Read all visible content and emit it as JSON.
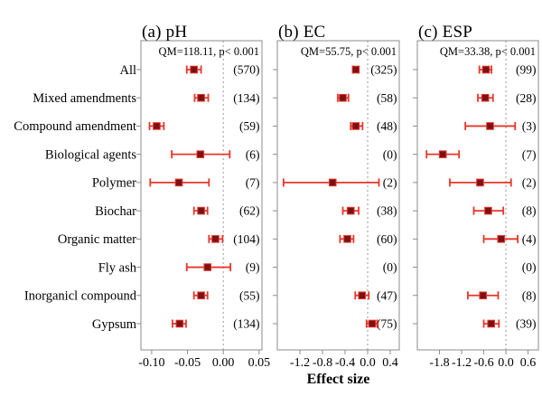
{
  "figure_colors": {
    "error_bar": "#e8362a",
    "marker_fill": "#7b1114",
    "frame": "#8c8c8c",
    "zero_line": "#999999",
    "text": "#000000"
  },
  "chart_data": {
    "type": "scatter",
    "subtype": "forest-plot-with-error-bars",
    "categories": [
      "All",
      "Mixed amendments",
      "Compound amendment",
      "Biological agents",
      "Polymer",
      "Biochar",
      "Organic matter",
      "Fly ash",
      "Inorganicl compound",
      "Gypsum"
    ],
    "xlabel": "Effect size",
    "legend": "none",
    "grid": false,
    "zero_reference_line": 0,
    "panels": [
      {
        "id": "a",
        "title": "(a) pH",
        "stats": "QM=118.11, p< 0.001",
        "xlim": [
          -0.115,
          0.054
        ],
        "xtick_labels": [
          "-0.10",
          "-0.05",
          "0.00",
          "0.05"
        ],
        "xtick_values": [
          -0.1,
          -0.05,
          0.0,
          0.05
        ],
        "points": [
          {
            "value": -0.041,
            "lo": -0.051,
            "hi": -0.031,
            "n": 570
          },
          {
            "value": -0.031,
            "lo": -0.04,
            "hi": -0.021,
            "n": 134
          },
          {
            "value": -0.093,
            "lo": -0.103,
            "hi": -0.083,
            "n": 59
          },
          {
            "value": -0.032,
            "lo": -0.072,
            "hi": 0.009,
            "n": 6
          },
          {
            "value": -0.062,
            "lo": -0.102,
            "hi": -0.02,
            "n": 7
          },
          {
            "value": -0.031,
            "lo": -0.041,
            "hi": -0.022,
            "n": 62
          },
          {
            "value": -0.011,
            "lo": -0.02,
            "hi": -0.001,
            "n": 104
          },
          {
            "value": -0.022,
            "lo": -0.051,
            "hi": 0.01,
            "n": 9
          },
          {
            "value": -0.031,
            "lo": -0.041,
            "hi": -0.022,
            "n": 55
          },
          {
            "value": -0.061,
            "lo": -0.071,
            "hi": -0.052,
            "n": 134
          }
        ]
      },
      {
        "id": "b",
        "title": "(b) EC",
        "stats": "QM=55.75, p< 0.001",
        "xlim": [
          -1.6,
          0.56
        ],
        "xtick_labels": [
          "-1.2",
          "-0.8",
          "-0.4",
          "0.0",
          "0.4"
        ],
        "xtick_values": [
          -1.2,
          -0.8,
          -0.4,
          0.0,
          0.4
        ],
        "points": [
          {
            "value": -0.21,
            "lo": -0.26,
            "hi": -0.16,
            "n": 325
          },
          {
            "value": -0.44,
            "lo": -0.53,
            "hi": -0.34,
            "n": 58
          },
          {
            "value": -0.21,
            "lo": -0.3,
            "hi": -0.09,
            "n": 48
          },
          {
            "value": null,
            "lo": null,
            "hi": null,
            "n": 0
          },
          {
            "value": -0.62,
            "lo": -1.49,
            "hi": 0.2,
            "n": 2
          },
          {
            "value": -0.3,
            "lo": -0.44,
            "hi": -0.16,
            "n": 38
          },
          {
            "value": -0.36,
            "lo": -0.49,
            "hi": -0.25,
            "n": 60
          },
          {
            "value": null,
            "lo": null,
            "hi": null,
            "n": 0
          },
          {
            "value": -0.1,
            "lo": -0.22,
            "hi": 0.02,
            "n": 47
          },
          {
            "value": 0.08,
            "lo": -0.02,
            "hi": 0.17,
            "n": 75
          }
        ]
      },
      {
        "id": "c",
        "title": "(c) ESP",
        "stats": "QM=33.38, p< 0.001",
        "xlim": [
          -2.4,
          0.88
        ],
        "xtick_labels": [
          "-1.8",
          "-1.2",
          "-0.6",
          "0.0",
          "0.6"
        ],
        "xtick_values": [
          -1.8,
          -1.2,
          -0.6,
          0.0,
          0.6
        ],
        "points": [
          {
            "value": -0.54,
            "lo": -0.72,
            "hi": -0.39,
            "n": 99
          },
          {
            "value": -0.56,
            "lo": -0.76,
            "hi": -0.35,
            "n": 28
          },
          {
            "value": -0.43,
            "lo": -1.1,
            "hi": 0.25,
            "n": 3
          },
          {
            "value": -1.71,
            "lo": -2.15,
            "hi": -1.27,
            "n": 7
          },
          {
            "value": -0.7,
            "lo": -1.52,
            "hi": 0.14,
            "n": 2
          },
          {
            "value": -0.48,
            "lo": -0.87,
            "hi": -0.07,
            "n": 8
          },
          {
            "value": -0.13,
            "lo": -0.6,
            "hi": 0.32,
            "n": 4
          },
          {
            "value": null,
            "lo": null,
            "hi": null,
            "n": 0
          },
          {
            "value": -0.62,
            "lo": -1.03,
            "hi": -0.21,
            "n": 8
          },
          {
            "value": -0.4,
            "lo": -0.6,
            "hi": -0.19,
            "n": 39
          }
        ]
      }
    ]
  }
}
